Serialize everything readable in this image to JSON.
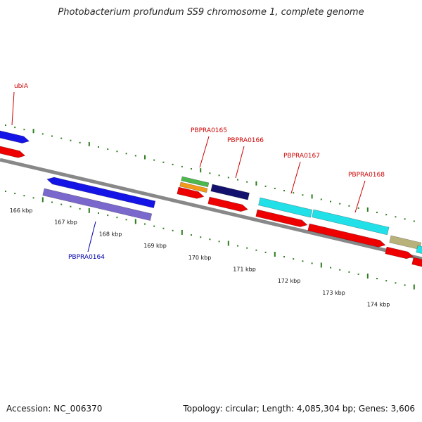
{
  "title": "Photobacterium profundum SS9 chromosome 1, complete genome",
  "footer": {
    "accession": "Accession: NC_006370",
    "stats": "Topology: circular; Length: 4,085,304 bp; Genes: 3,606"
  },
  "colors": {
    "backbone": "#888888",
    "tick": "#2e7d1e",
    "red": "#ee0000",
    "blue": "#1414e6",
    "lavender": "#7b68cc",
    "navy": "#12126e",
    "cyan": "#22e0e8",
    "khaki": "#b8b27a",
    "green": "#4db84d",
    "orange": "#f39a1a",
    "label_red": "#cc0000",
    "label_blue": "#0000aa"
  },
  "kbp_labels": [
    "166 kbp",
    "167 kbp",
    "168 kbp",
    "169 kbp",
    "170 kbp",
    "171 kbp",
    "172 kbp",
    "173 kbp",
    "174 kbp"
  ],
  "gene_labels": [
    {
      "name": "ubiA",
      "color": "label_red"
    },
    {
      "name": "PBPRA0165",
      "color": "label_red"
    },
    {
      "name": "PBPRA0166",
      "color": "label_red"
    },
    {
      "name": "PBPRA0167",
      "color": "label_red"
    },
    {
      "name": "PBPRA0168",
      "color": "label_red"
    },
    {
      "name": "PBPRA0164",
      "color": "label_blue"
    }
  ]
}
